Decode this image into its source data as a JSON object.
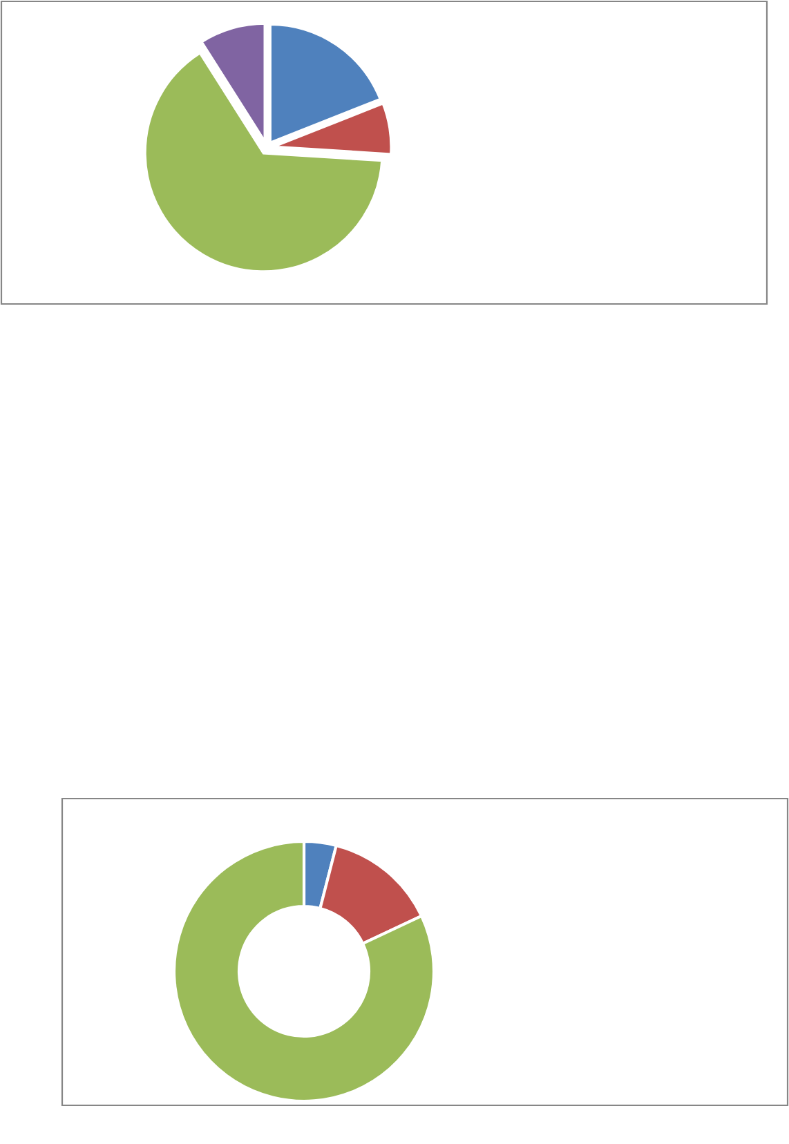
{
  "chart_data": [
    {
      "type": "pie",
      "categories": [
        null,
        null,
        null,
        null
      ],
      "values": [
        19,
        7,
        65,
        9
      ],
      "colors": [
        "#4f81bd",
        "#c0504d",
        "#9bbb59",
        "#8064a2"
      ]
    },
    {
      "type": "donut",
      "categories": [
        null,
        null,
        null
      ],
      "values": [
        4,
        14,
        82
      ],
      "colors": [
        "#4f81bd",
        "#c0504d",
        "#9bbb59"
      ]
    }
  ]
}
